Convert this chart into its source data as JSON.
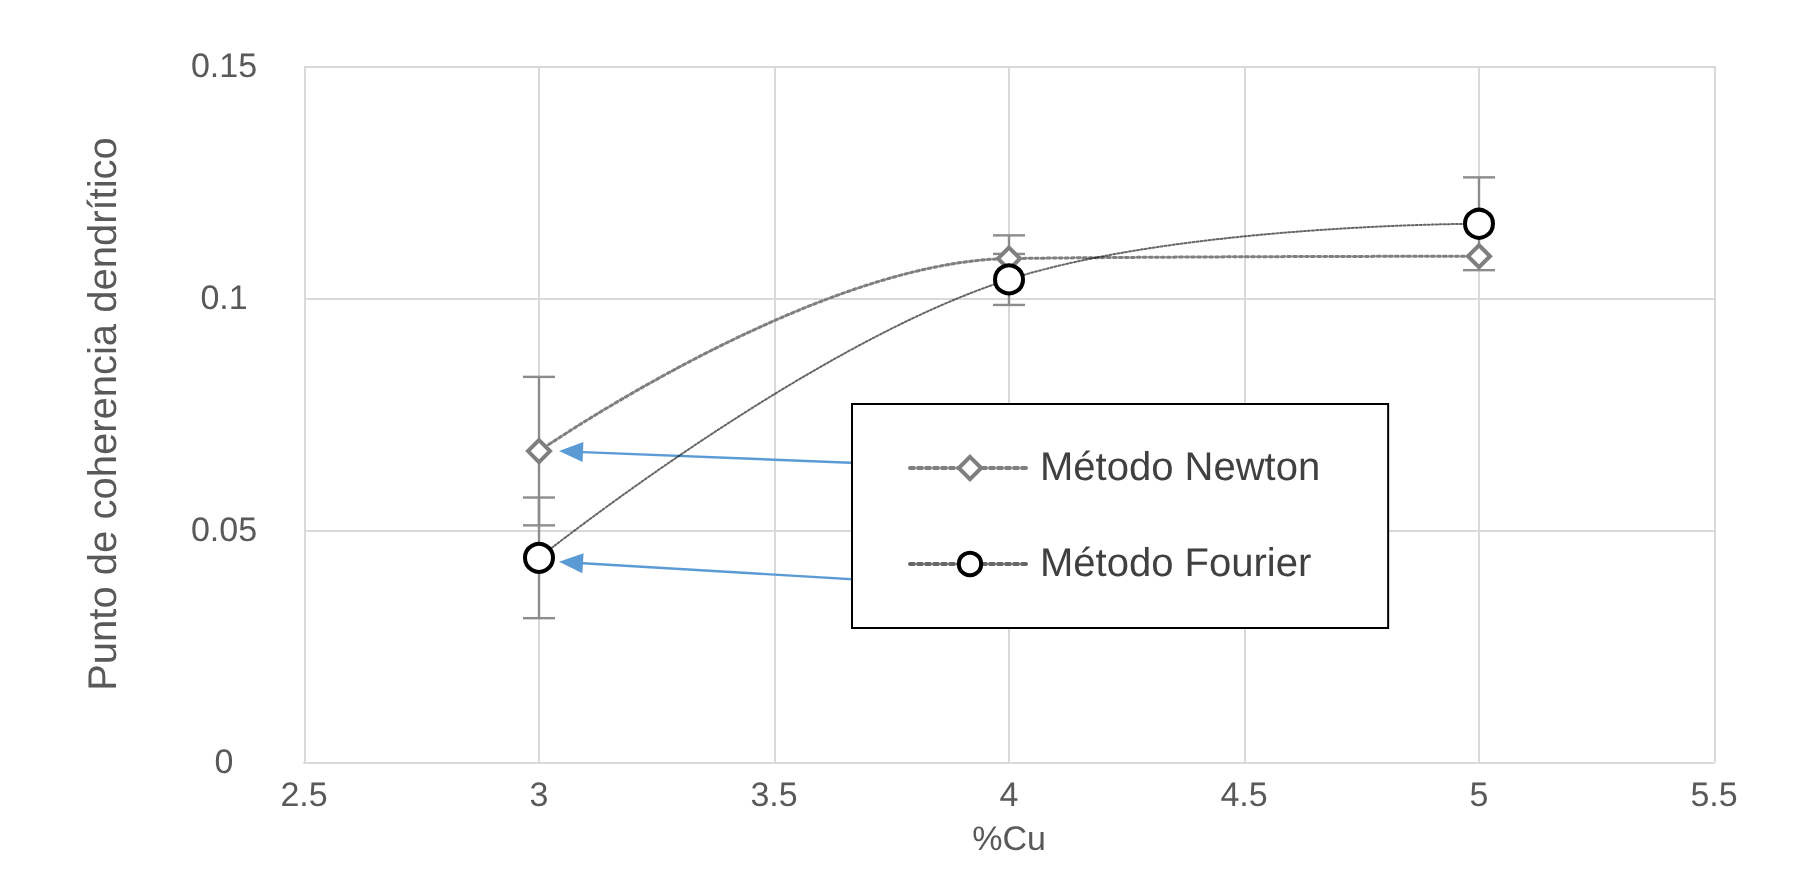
{
  "chart_data": {
    "type": "line",
    "xlabel": "%Cu",
    "ylabel": "Punto de coherencia dendrítico",
    "x": [
      3,
      4,
      5
    ],
    "series": [
      {
        "name": "Método Newton",
        "color": "#7f7f7f",
        "marker": "diamond",
        "values": [
          0.067,
          0.1085,
          0.109
        ],
        "errors": [
          0.016,
          0.005,
          null
        ]
      },
      {
        "name": "Método Fourier",
        "color": "#000000",
        "marker": "circle",
        "values": [
          0.044,
          0.104,
          0.116
        ],
        "errors": [
          0.013,
          0.0055,
          0.01
        ]
      }
    ],
    "xlim": [
      2.5,
      5.5
    ],
    "xticks": [
      2.5,
      3,
      3.5,
      4,
      4.5,
      5,
      5.5
    ],
    "ylim": [
      0,
      0.15
    ],
    "yticks": [
      0,
      0.05,
      0.1,
      0.15
    ],
    "grid": true,
    "legend": "right",
    "line_style": "dotted"
  }
}
